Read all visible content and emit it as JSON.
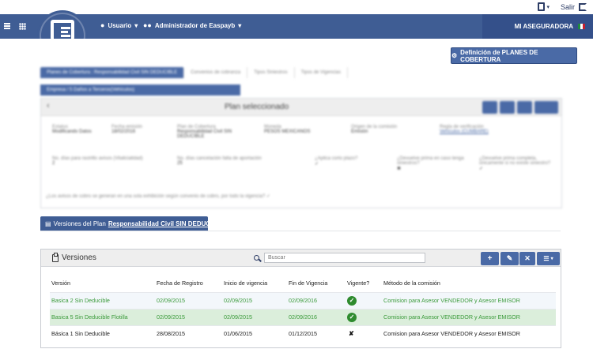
{
  "topbar": {
    "exit_label": "Salir"
  },
  "nav": {
    "user_label": "Usuario",
    "admin_label": "Administrador de Easpayb",
    "brand": "MI ASEGURADORA"
  },
  "main": {
    "definition_button": "Definición de PLANES DE COBERTURA",
    "upper": {
      "tabs": [
        "Planes de Cobertura : Responsabilidad Civil SIN DEDUCIBLE",
        "Convenios de cobranza",
        "Tipos Siniestros",
        "Tipos de Vigencias"
      ],
      "subtab": "Empresa / 5 Daños a Terceros(Vehículos)",
      "card_title": "Plan seleccionado",
      "fields_row1": [
        {
          "label": "Estatus",
          "value": "Modificando Datos"
        },
        {
          "label": "Fecha emisión",
          "value": "18/02/2016"
        },
        {
          "label": "Plan de Cobertura",
          "value": "Responsabilidad Civil SIN DEDUCIBLE"
        },
        {
          "label": "Moneda",
          "value": "PESOS MEXICANOS"
        },
        {
          "label": "Origen de la comisión",
          "value": "Emisión"
        },
        {
          "label": "Regla de verificación",
          "value": "Vehículos (CUMBARE)"
        }
      ],
      "fields_row2": [
        {
          "label": "No. días para rastrillo avisos (Vitalicialidad)",
          "value": "2"
        },
        {
          "label": "No. días cancelación falta de aportación",
          "value": "25"
        },
        {
          "label": "¿Aplica corto plazo?",
          "value": "✓"
        },
        {
          "label": "¿Devuelve prima en caso tenga siniestros?",
          "value": "✖"
        },
        {
          "label": "¿Devuelve prima completa, únicamente si no existe siniestro?",
          "value": "✓"
        }
      ],
      "footer_question": "¿Los avisos de cobro se generan en una sola exhibición según convenio de cobro, por todo la vigencia? ✓"
    },
    "versions_tab": {
      "prefix": "Versiones del Plan",
      "plan": "Responsabilidad Civil SIN DEDUCIBLE"
    },
    "panel": {
      "title": "Versiones",
      "search_placeholder": "Buscar",
      "columns": [
        "Versión",
        "Fecha de Registro",
        "Inicio de vigencia",
        "Fin de Vigencia",
        "Vigente?",
        "Método de la comisión"
      ],
      "rows": [
        {
          "version": "Basica 2 Sin Deducible",
          "registro": "02/09/2015",
          "inicio": "02/09/2015",
          "fin": "02/09/2016",
          "vigente": true,
          "metodo": "Comision para Asesor VENDEDOR y Asesor EMISOR"
        },
        {
          "version": "Basica 5 Sin Deducible Flotilla",
          "registro": "02/09/2015",
          "inicio": "02/09/2015",
          "fin": "02/09/2016",
          "vigente": true,
          "metodo": "Comision para Asesor VENDEDOR y Asesor EMISOR"
        },
        {
          "version": "Básica 1 Sin Deducible",
          "registro": "28/08/2015",
          "inicio": "01/06/2015",
          "fin": "01/12/2015",
          "vigente": false,
          "metodo": "Comision para Asesor VENDEDOR y Asesor EMISOR"
        }
      ]
    }
  },
  "colors": {
    "primary": "#3f5d94",
    "button": "#4a6aa6",
    "vigente_text": "#3a9a3a",
    "highlight_row": "#dbeedb"
  }
}
